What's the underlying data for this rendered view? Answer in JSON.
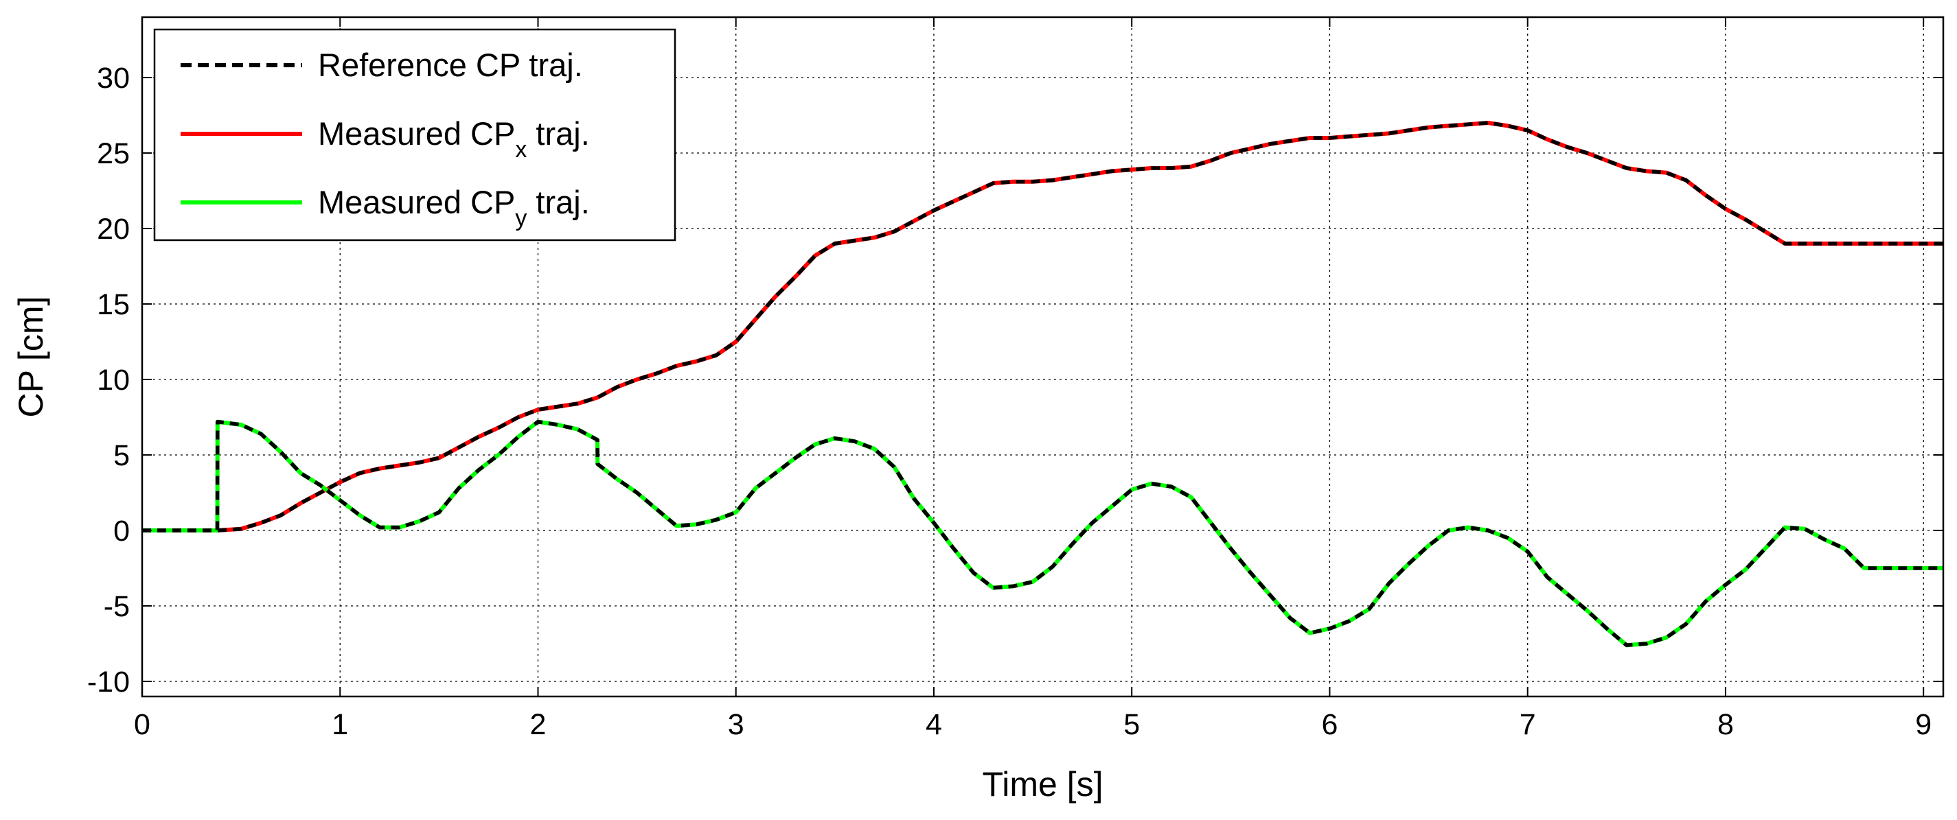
{
  "chart_data": {
    "type": "line",
    "xlabel": "Time [s]",
    "ylabel": "CP [cm]",
    "xlim": [
      0,
      9.1
    ],
    "ylim": [
      -11,
      34
    ],
    "xticks": [
      0,
      1,
      2,
      3,
      4,
      5,
      6,
      7,
      8,
      9
    ],
    "yticks": [
      -10,
      -5,
      0,
      5,
      10,
      15,
      20,
      25,
      30
    ],
    "grid": true,
    "legend_position": "top-left",
    "legend": [
      {
        "text": "Reference CP traj.",
        "base": "Reference CP traj.",
        "sub": "",
        "suffix": "",
        "color": "#000000",
        "dashed": true
      },
      {
        "text": "Measured CPx traj.",
        "base": "Measured CP",
        "sub": "x",
        "suffix": " traj.",
        "color": "#ff0000",
        "dashed": false
      },
      {
        "text": "Measured CPy traj.",
        "base": "Measured CP",
        "sub": "y",
        "suffix": " traj.",
        "color": "#00ff00",
        "dashed": false
      }
    ],
    "series": [
      {
        "name": "Measured CPx traj.",
        "color": "#ff0000",
        "x": [
          0,
          0.38,
          0.5,
          0.6,
          0.7,
          0.8,
          0.9,
          1.0,
          1.1,
          1.2,
          1.3,
          1.4,
          1.5,
          1.6,
          1.7,
          1.8,
          1.9,
          2.0,
          2.1,
          2.2,
          2.3,
          2.4,
          2.5,
          2.6,
          2.7,
          2.8,
          2.9,
          3.0,
          3.1,
          3.2,
          3.3,
          3.4,
          3.5,
          3.6,
          3.7,
          3.8,
          3.9,
          4.0,
          4.1,
          4.2,
          4.3,
          4.4,
          4.5,
          4.6,
          4.7,
          4.8,
          4.9,
          5.0,
          5.1,
          5.2,
          5.3,
          5.4,
          5.5,
          5.6,
          5.7,
          5.8,
          5.9,
          6.0,
          6.1,
          6.2,
          6.3,
          6.4,
          6.5,
          6.6,
          6.7,
          6.8,
          6.9,
          7.0,
          7.1,
          7.2,
          7.3,
          7.4,
          7.5,
          7.6,
          7.7,
          7.8,
          7.9,
          8.0,
          8.1,
          8.2,
          8.3,
          8.5,
          8.7,
          9.1
        ],
        "y": [
          0,
          0,
          0.1,
          0.5,
          1.0,
          1.8,
          2.5,
          3.2,
          3.8,
          4.1,
          4.3,
          4.5,
          4.8,
          5.5,
          6.2,
          6.8,
          7.5,
          8.0,
          8.2,
          8.4,
          8.8,
          9.5,
          10.0,
          10.4,
          10.9,
          11.2,
          11.6,
          12.5,
          14.0,
          15.5,
          16.8,
          18.2,
          19.0,
          19.2,
          19.4,
          19.8,
          20.5,
          21.2,
          21.8,
          22.4,
          23.0,
          23.1,
          23.1,
          23.2,
          23.4,
          23.6,
          23.8,
          23.9,
          24.0,
          24.0,
          24.1,
          24.5,
          25.0,
          25.3,
          25.6,
          25.8,
          26.0,
          26.0,
          26.1,
          26.2,
          26.3,
          26.5,
          26.7,
          26.8,
          26.9,
          27.0,
          26.8,
          26.5,
          25.9,
          25.4,
          25.0,
          24.5,
          24.0,
          23.8,
          23.7,
          23.2,
          22.2,
          21.3,
          20.6,
          19.8,
          19.0,
          19.0,
          19.0,
          19.0
        ]
      },
      {
        "name": "Measured CPy traj.",
        "color": "#00ff00",
        "x": [
          0,
          0.38,
          0.381,
          0.5,
          0.6,
          0.7,
          0.8,
          0.9,
          1.0,
          1.1,
          1.2,
          1.3,
          1.4,
          1.5,
          1.6,
          1.7,
          1.8,
          1.9,
          2.0,
          2.1,
          2.2,
          2.3,
          2.301,
          2.4,
          2.5,
          2.6,
          2.7,
          2.8,
          2.9,
          3.0,
          3.1,
          3.2,
          3.3,
          3.4,
          3.5,
          3.6,
          3.7,
          3.8,
          3.9,
          4.0,
          4.1,
          4.2,
          4.3,
          4.4,
          4.5,
          4.6,
          4.7,
          4.8,
          4.9,
          5.0,
          5.1,
          5.2,
          5.3,
          5.4,
          5.5,
          5.6,
          5.7,
          5.8,
          5.9,
          6.0,
          6.1,
          6.2,
          6.3,
          6.4,
          6.5,
          6.6,
          6.7,
          6.8,
          6.9,
          7.0,
          7.1,
          7.2,
          7.3,
          7.4,
          7.5,
          7.6,
          7.7,
          7.8,
          7.9,
          8.0,
          8.1,
          8.2,
          8.3,
          8.4,
          8.5,
          8.6,
          8.7,
          9.1
        ],
        "y": [
          0,
          0,
          7.2,
          7.0,
          6.4,
          5.2,
          3.8,
          3.0,
          2.0,
          1.0,
          0.2,
          0.2,
          0.6,
          1.2,
          2.8,
          4.0,
          5.0,
          6.2,
          7.2,
          7.0,
          6.7,
          6.0,
          4.4,
          3.4,
          2.5,
          1.4,
          0.3,
          0.4,
          0.7,
          1.2,
          2.8,
          3.8,
          4.8,
          5.7,
          6.1,
          5.9,
          5.4,
          4.2,
          2.1,
          0.5,
          -1.2,
          -2.8,
          -3.8,
          -3.7,
          -3.4,
          -2.4,
          -0.9,
          0.5,
          1.6,
          2.7,
          3.1,
          2.9,
          2.2,
          0.5,
          -1.2,
          -2.8,
          -4.3,
          -5.8,
          -6.8,
          -6.5,
          -6.0,
          -5.2,
          -3.5,
          -2.2,
          -1.0,
          0.0,
          0.2,
          0.0,
          -0.5,
          -1.4,
          -3.1,
          -4.2,
          -5.3,
          -6.5,
          -7.6,
          -7.5,
          -7.1,
          -6.2,
          -4.7,
          -3.6,
          -2.6,
          -1.2,
          0.2,
          0.1,
          -0.6,
          -1.2,
          -2.5,
          -2.5
        ]
      },
      {
        "name": "Reference CP traj.",
        "color": "#000000",
        "dashed": true,
        "follows": [
          "Measured CPx traj.",
          "Measured CPy traj."
        ]
      }
    ]
  }
}
